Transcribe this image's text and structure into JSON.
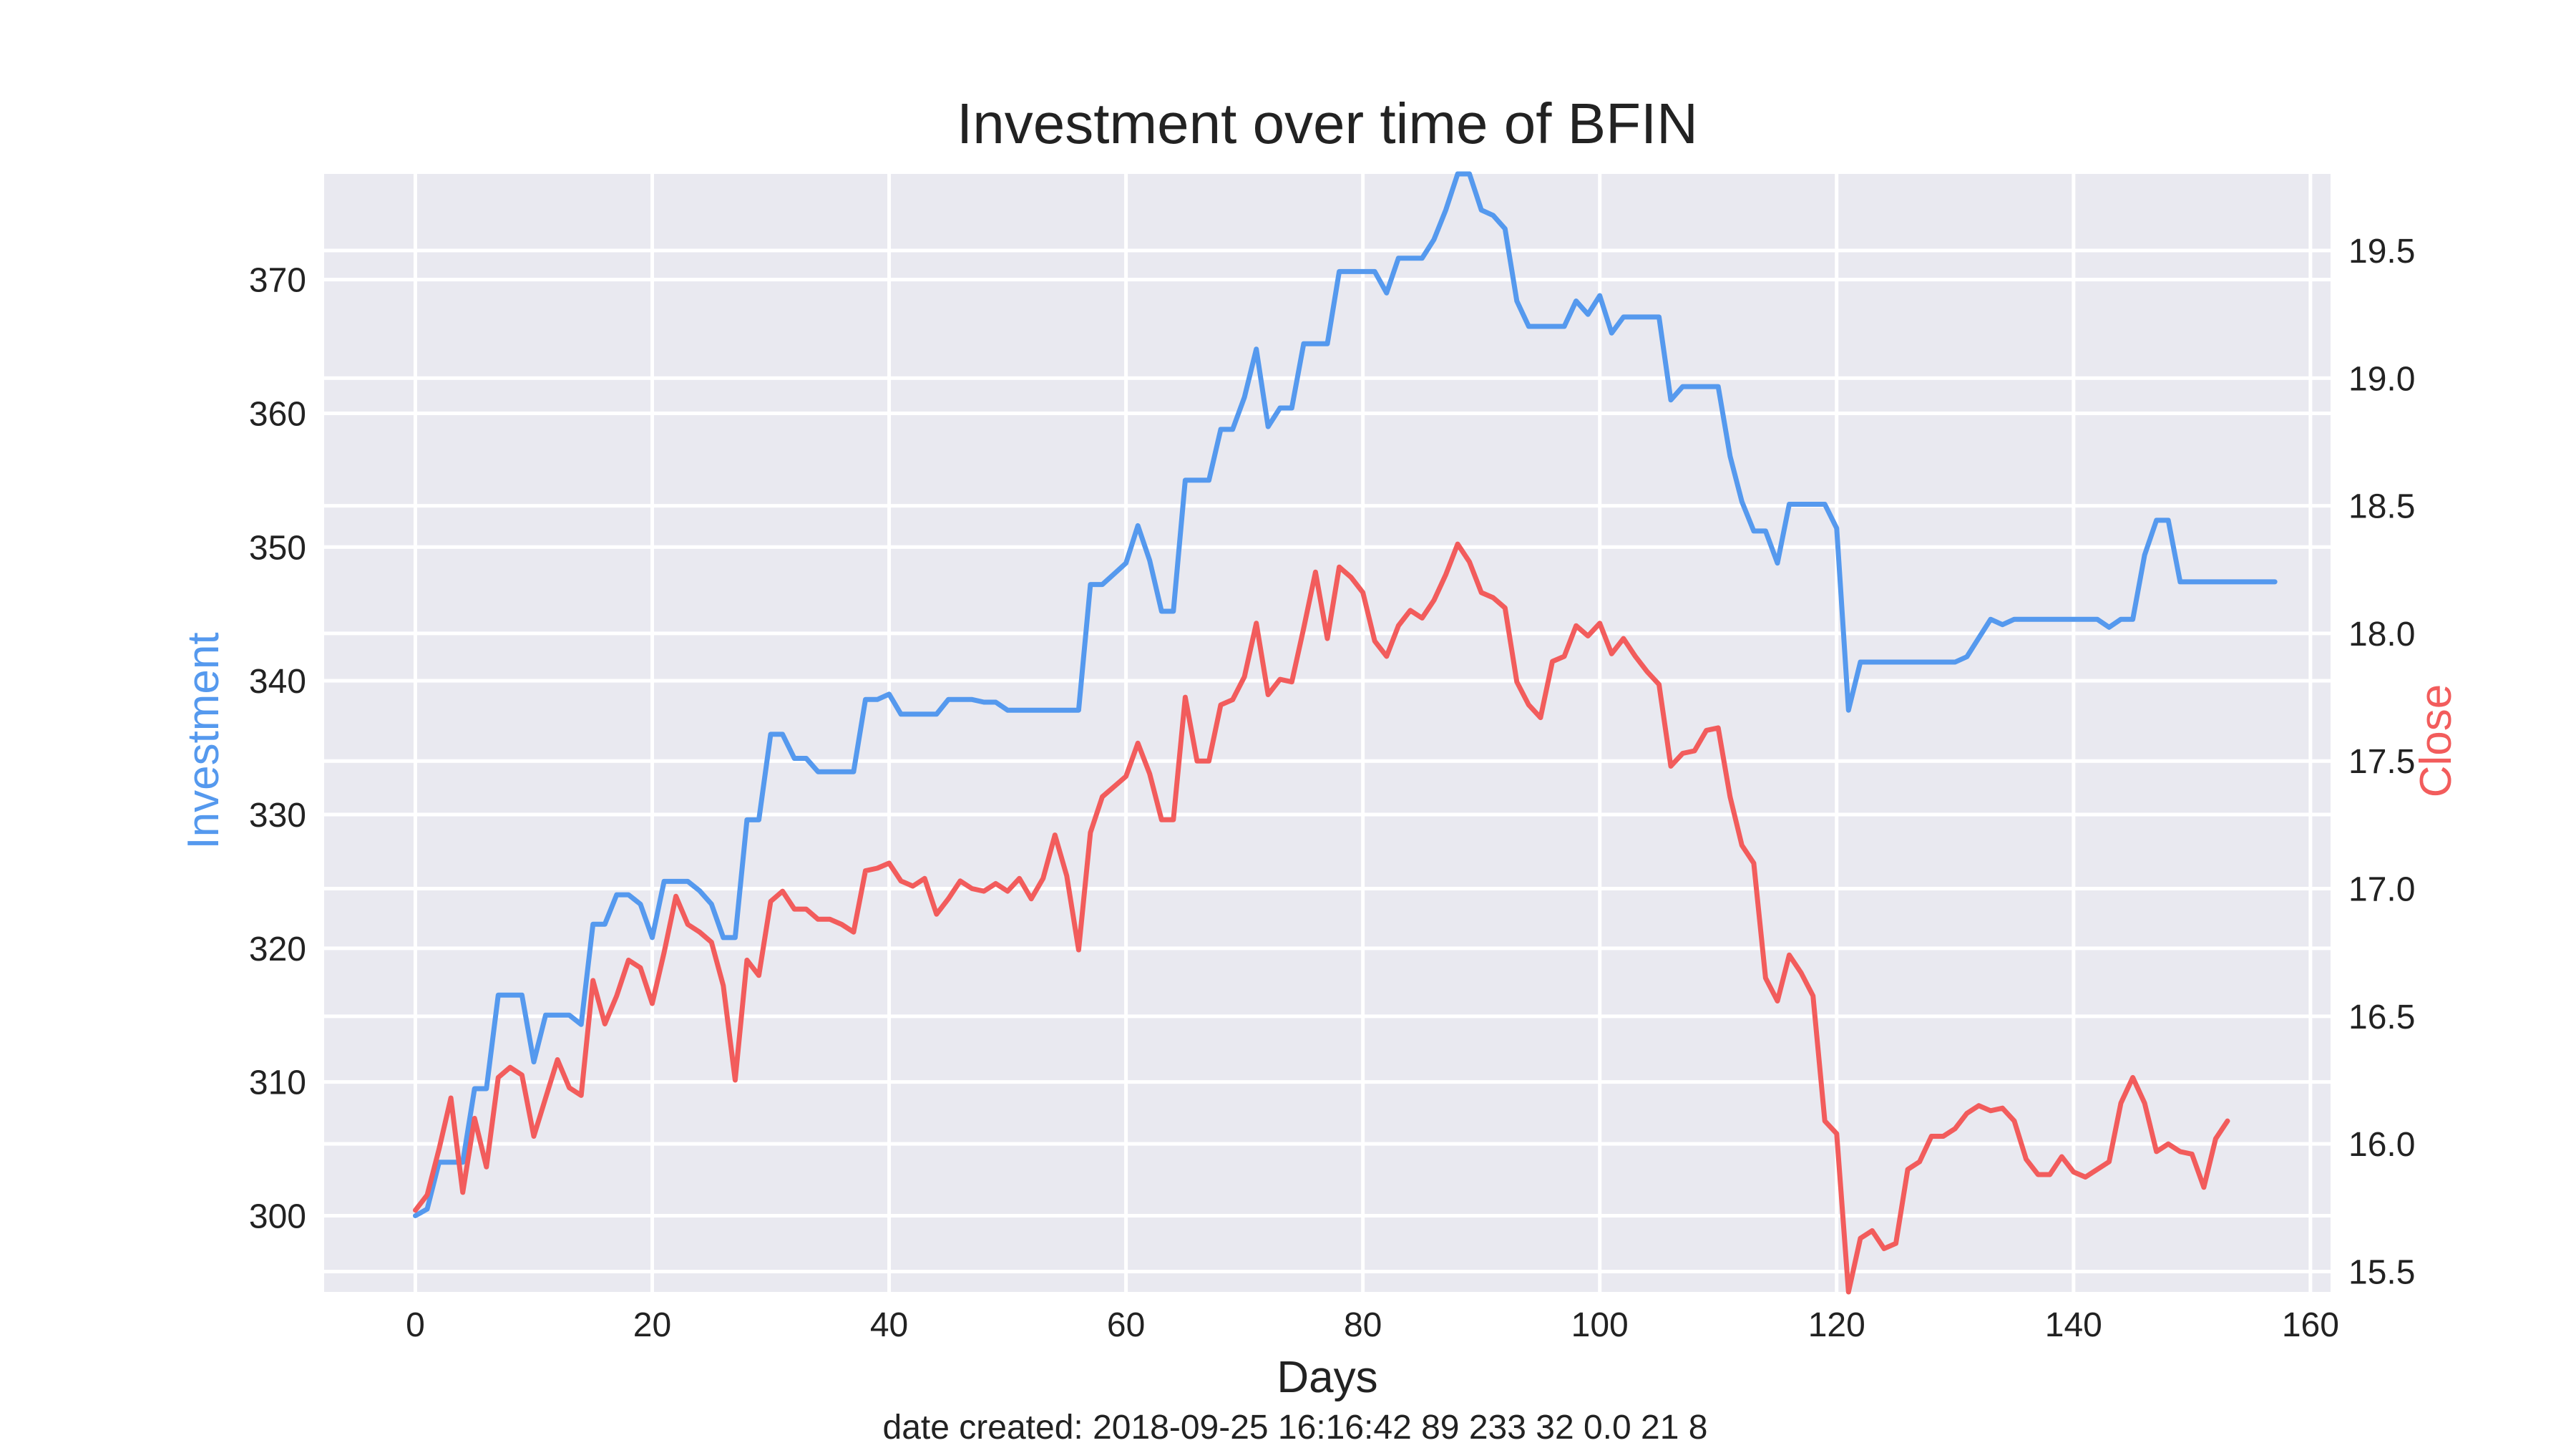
{
  "chart_data": {
    "type": "line",
    "title": "Investment over time of BFIN",
    "xlabel": "Days",
    "footer": "date created: 2018-09-25 16:16:42 89 233 32 0.0 21 8",
    "grid": true,
    "x_ticks": [
      "0",
      "20",
      "40",
      "60",
      "80",
      "100",
      "120",
      "140",
      "160"
    ],
    "xlim": [
      -7.7,
      161.7
    ],
    "left_axis": {
      "label": "Investment",
      "ylim": [
        294.3,
        377.9
      ],
      "ticks": [
        "300",
        "310",
        "320",
        "330",
        "340",
        "350",
        "360",
        "370"
      ]
    },
    "right_axis": {
      "label": "Close",
      "ylim": [
        15.42,
        19.8
      ],
      "ticks": [
        "15.5",
        "16.0",
        "16.5",
        "17.0",
        "17.5",
        "18.0",
        "18.5",
        "19.0",
        "19.5"
      ]
    },
    "colors": {
      "investment": "#5599ee",
      "close": "#f25c5c",
      "plot_bg": "#e9e9f0",
      "grid": "#ffffff",
      "text": "#222222"
    },
    "series": [
      {
        "name": "Investment",
        "axis": "left",
        "color": "#5599ee",
        "values": [
          300.0,
          300.5,
          304.0,
          304.0,
          304.0,
          309.5,
          309.5,
          316.5,
          316.5,
          316.5,
          311.5,
          315.0,
          315.0,
          315.0,
          314.3,
          321.8,
          321.8,
          324.0,
          324.0,
          323.3,
          320.8,
          325.0,
          325.0,
          325.0,
          324.3,
          323.3,
          320.8,
          320.8,
          329.6,
          329.6,
          336.0,
          336.0,
          334.2,
          334.2,
          333.2,
          333.2,
          333.2,
          333.2,
          338.6,
          338.6,
          339.0,
          337.5,
          337.5,
          337.5,
          337.5,
          338.6,
          338.6,
          338.6,
          338.4,
          338.4,
          337.8,
          337.8,
          337.8,
          337.8,
          337.8,
          337.8,
          337.8,
          347.2,
          347.2,
          348.0,
          348.8,
          351.6,
          349.0,
          345.2,
          345.2,
          355.0,
          355.0,
          355.0,
          358.8,
          358.8,
          361.2,
          364.8,
          359.0,
          360.4,
          360.4,
          365.2,
          365.2,
          365.2,
          370.6,
          370.6,
          370.6,
          370.6,
          369.0,
          371.6,
          371.6,
          371.6,
          373.0,
          375.2,
          377.9,
          377.9,
          375.2,
          374.8,
          373.8,
          368.4,
          366.5,
          366.5,
          366.5,
          366.5,
          368.4,
          367.4,
          368.8,
          366.0,
          367.2,
          367.2,
          367.2,
          367.2,
          361.0,
          362.0,
          362.0,
          362.0,
          362.0,
          356.8,
          353.4,
          351.2,
          351.2,
          348.8,
          353.2,
          353.2,
          353.2,
          353.2,
          351.4,
          337.8,
          341.4,
          341.4,
          341.4,
          341.4,
          341.4,
          341.4,
          341.4,
          341.4,
          341.4,
          341.8,
          343.2,
          344.6,
          344.2,
          344.6,
          344.6,
          344.6,
          344.6,
          344.6,
          344.6,
          344.6,
          344.6,
          344.0,
          344.6,
          344.6,
          349.4,
          352.0,
          352.0,
          347.4,
          347.4,
          347.4,
          347.4,
          347.4,
          347.4,
          347.4,
          347.4,
          347.4
        ]
      },
      {
        "name": "Close",
        "axis": "right",
        "color": "#f25c5c",
        "values": [
          15.74,
          15.8,
          15.98,
          16.18,
          15.81,
          16.1,
          15.91,
          16.26,
          16.3,
          16.27,
          16.03,
          16.18,
          16.33,
          16.22,
          16.19,
          16.64,
          16.47,
          16.58,
          16.72,
          16.69,
          16.55,
          16.75,
          16.97,
          16.86,
          16.83,
          16.79,
          16.62,
          16.25,
          16.72,
          16.66,
          16.95,
          16.99,
          16.92,
          16.92,
          16.88,
          16.88,
          16.86,
          16.83,
          17.07,
          17.08,
          17.1,
          17.03,
          17.01,
          17.04,
          16.9,
          16.96,
          17.03,
          17.0,
          16.99,
          17.02,
          16.99,
          17.04,
          16.96,
          17.04,
          17.21,
          17.05,
          16.76,
          17.22,
          17.36,
          17.4,
          17.44,
          17.57,
          17.45,
          17.27,
          17.27,
          17.75,
          17.5,
          17.5,
          17.72,
          17.74,
          17.83,
          18.04,
          17.76,
          17.82,
          17.81,
          18.02,
          18.24,
          17.98,
          18.26,
          18.22,
          18.16,
          17.97,
          17.91,
          18.03,
          18.09,
          18.06,
          18.13,
          18.23,
          18.35,
          18.28,
          18.16,
          18.14,
          18.1,
          17.81,
          17.72,
          17.67,
          17.89,
          17.91,
          18.03,
          17.99,
          18.04,
          17.92,
          17.98,
          17.91,
          17.85,
          17.8,
          17.48,
          17.53,
          17.54,
          17.62,
          17.63,
          17.36,
          17.17,
          17.1,
          16.65,
          16.56,
          16.74,
          16.67,
          16.58,
          16.09,
          16.04,
          15.42,
          15.63,
          15.66,
          15.59,
          15.61,
          15.9,
          15.93,
          16.03,
          16.03,
          16.06,
          16.12,
          16.15,
          16.13,
          16.14,
          16.09,
          15.94,
          15.88,
          15.88,
          15.95,
          15.89,
          15.87,
          15.9,
          15.93,
          16.16,
          16.26,
          16.16,
          15.97,
          16.0,
          15.97,
          15.96,
          15.83,
          16.02,
          16.09
        ]
      }
    ]
  }
}
